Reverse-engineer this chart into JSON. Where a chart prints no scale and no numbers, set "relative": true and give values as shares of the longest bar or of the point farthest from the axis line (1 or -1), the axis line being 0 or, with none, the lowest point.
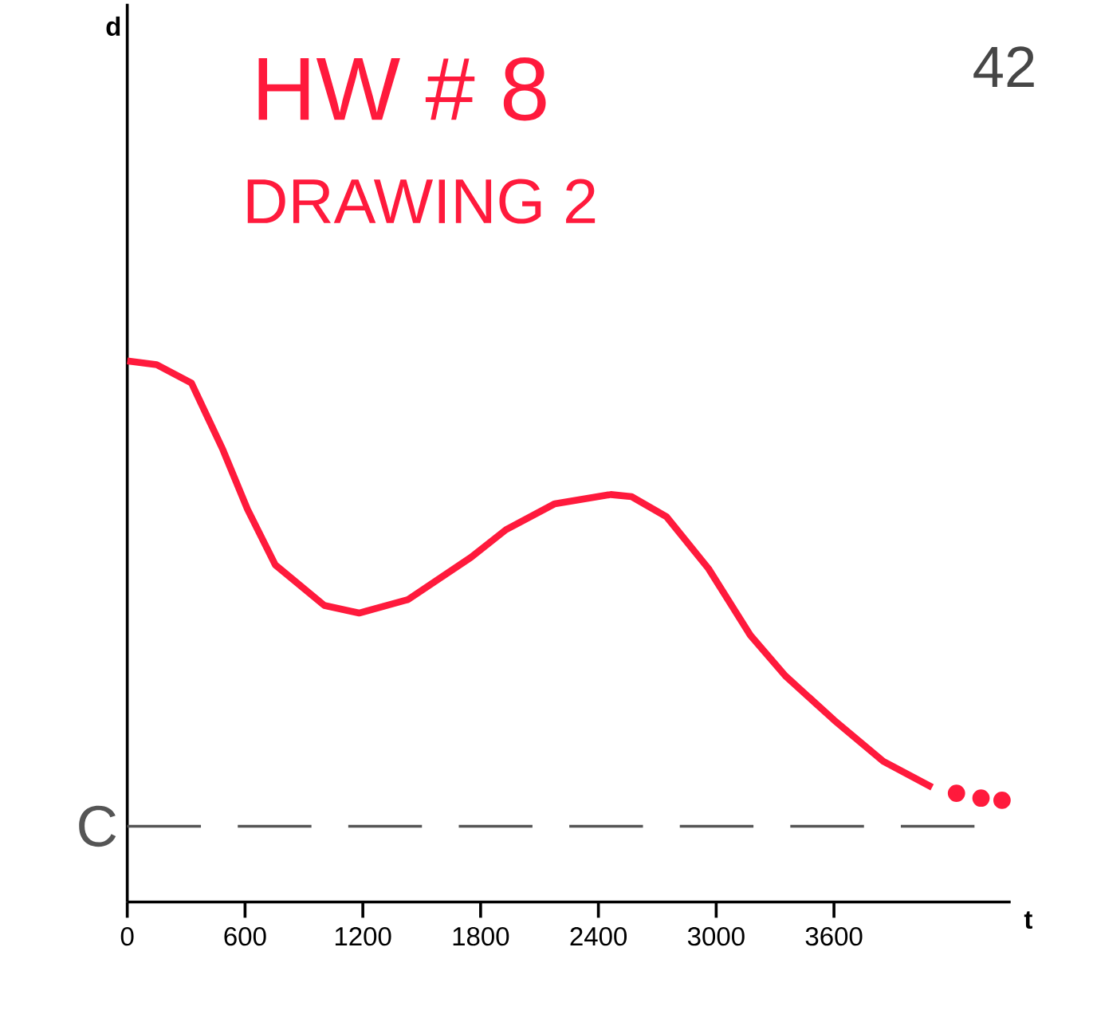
{
  "chart_data": {
    "type": "line",
    "title": "HW # 8",
    "subtitle": "DRAWING 2",
    "xlabel": "t",
    "annotations": [
      "42",
      "d"
    ],
    "relative": true,
    "xlim": [
      0,
      4500
    ],
    "xticks": [
      0,
      600,
      1200,
      1800,
      2400,
      3000,
      3600
    ],
    "series": [
      {
        "color": "#ff1a3c",
        "line_style": "solid",
        "x": [
          0,
          150,
          327,
          487,
          612,
          754,
          1004,
          1181,
          1431,
          1751,
          1929,
          2178,
          2463,
          2569,
          2747,
          2961,
          3174,
          3352,
          3601,
          3851,
          4100
        ],
        "values": [
          1.0,
          0.993,
          0.959,
          0.836,
          0.726,
          0.623,
          0.548,
          0.534,
          0.559,
          0.637,
          0.688,
          0.736,
          0.753,
          0.749,
          0.712,
          0.616,
          0.493,
          0.418,
          0.336,
          0.26,
          0.212
        ]
      },
      {
        "color": "#ff1a3c",
        "type": "scatter",
        "x": [
          4224,
          4349,
          4456
        ],
        "values": [
          0.201,
          0.192,
          0.188
        ]
      }
    ],
    "ref_lines": [
      {
        "axis": "y",
        "value": 0.14,
        "label": "C",
        "color": "#555555",
        "line_style": "dashed"
      }
    ],
    "grid": false
  }
}
